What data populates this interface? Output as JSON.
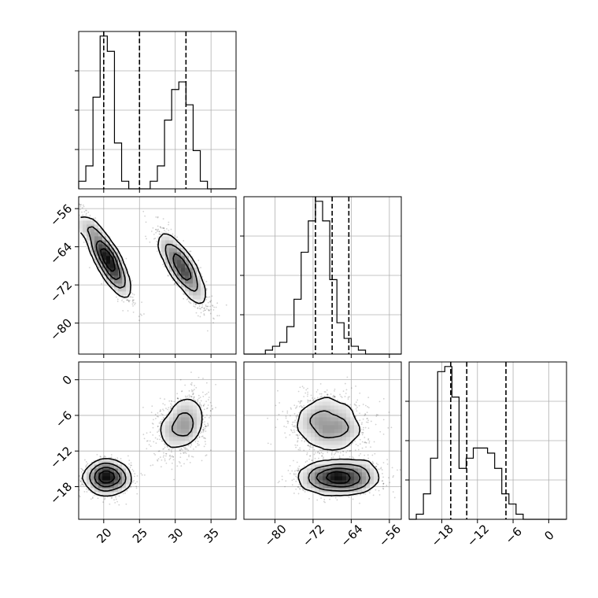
{
  "chart_data": {
    "type": "corner",
    "title": "",
    "parameters": [
      {
        "ticks": [
          20,
          25,
          30,
          35
        ],
        "tick_labels": [
          "20",
          "25",
          "30",
          "35"
        ],
        "range": [
          16.5,
          38.5
        ],
        "quantiles": [
          20.0,
          25.0,
          31.5
        ]
      },
      {
        "ticks": [
          -80,
          -72,
          -64,
          -56
        ],
        "tick_labels": [
          "−80",
          "−72",
          "−64",
          "−56"
        ],
        "range": [
          -86.5,
          -53.5
        ],
        "quantiles": [
          -71.5,
          -68.0,
          -64.5
        ]
      },
      {
        "ticks": [
          -18,
          -12,
          -6,
          0
        ],
        "tick_labels": [
          "−18",
          "−12",
          "−6",
          "0"
        ],
        "range": [
          -23.5,
          3.0
        ],
        "quantiles": [
          -16.5,
          -13.8,
          -7.2
        ]
      }
    ],
    "histograms": [
      {
        "param": 0,
        "bin_start": 16.5,
        "bin_width": 1.0,
        "counts": [
          1,
          3,
          12,
          20,
          18,
          6,
          1,
          0,
          0,
          0,
          1,
          3,
          9,
          13,
          14,
          11,
          5,
          1,
          0,
          0,
          0,
          0
        ]
      },
      {
        "param": 1,
        "bin_start": -86.5,
        "bin_width": 1.5,
        "counts": [
          0,
          0,
          0,
          1,
          2,
          3,
          7,
          14,
          26,
          34,
          39,
          34,
          19,
          8,
          4,
          2,
          1,
          0,
          0,
          0,
          0,
          0
        ]
      },
      {
        "param": 2,
        "bin_start": -23.5,
        "bin_width": 1.2,
        "counts": [
          0,
          1,
          5,
          12,
          29,
          30,
          24,
          10,
          12,
          14,
          14,
          13,
          10,
          5,
          3,
          1,
          0,
          0,
          0,
          0,
          0,
          0
        ]
      }
    ],
    "joint_modes": [
      {
        "weight": 0.55,
        "mean": [
          20.5,
          -66.5,
          -16.5
        ],
        "sd": [
          1.6,
          4.3,
          1.3
        ],
        "corr": [
          [
            1,
            -0.9,
            0.0
          ],
          [
            -0.9,
            1,
            0.1
          ],
          [
            0.0,
            0.1,
            1
          ]
        ]
      },
      {
        "weight": 0.45,
        "mean": [
          31.0,
          -68.5,
          -7.5
        ],
        "sd": [
          1.7,
          4.0,
          2.6
        ],
        "corr": [
          [
            1,
            -0.85,
            0.3
          ],
          [
            -0.85,
            1,
            -0.1
          ],
          [
            0.3,
            -0.1,
            1
          ]
        ]
      }
    ],
    "samples_per_panel": 2600,
    "contour_levels": [
      0.5,
      1.0,
      1.5,
      2.0
    ],
    "grid": true,
    "colors": {
      "line": "#000000",
      "grid": "#b0b0b0",
      "points": "#000000"
    }
  }
}
